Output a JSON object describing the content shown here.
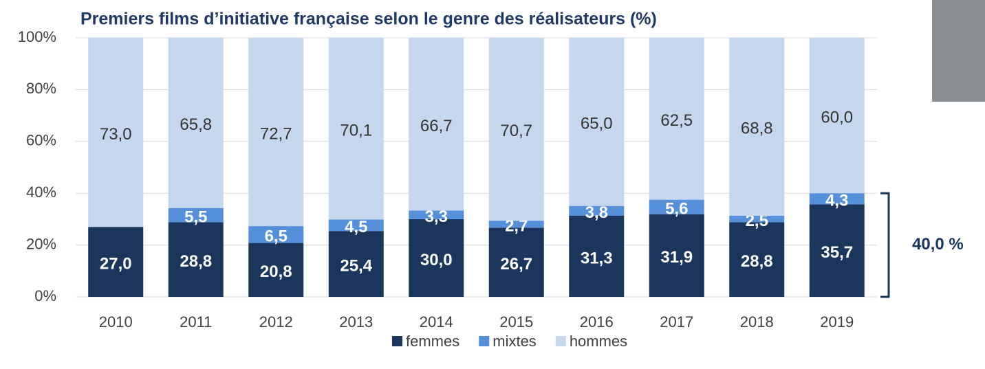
{
  "chart_data": {
    "type": "stacked-bar",
    "title": "Premiers films d’initiative française selon le genre des réalisateurs (%)",
    "categories": [
      "2010",
      "2011",
      "2012",
      "2013",
      "2014",
      "2015",
      "2016",
      "2017",
      "2018",
      "2019"
    ],
    "series": [
      {
        "name": "femmes",
        "color": "#1b365d",
        "values": [
          27.0,
          28.8,
          20.8,
          25.4,
          30.0,
          26.7,
          31.3,
          31.9,
          28.8,
          35.7
        ],
        "value_labels": [
          "27,0",
          "28,8",
          "20,8",
          "25,4",
          "30,0",
          "26,7",
          "31,3",
          "31,9",
          "28,8",
          "35,7"
        ]
      },
      {
        "name": "mixtes",
        "color": "#5590db",
        "values": [
          null,
          5.5,
          6.5,
          4.5,
          3.3,
          2.7,
          3.8,
          5.6,
          2.5,
          4.3
        ],
        "value_labels": [
          null,
          "5,5",
          "6,5",
          "4,5",
          "3,3",
          "2,7",
          "3,8",
          "5,6",
          "2,5",
          "4,3"
        ]
      },
      {
        "name": "hommes",
        "color": "#c5d7ef",
        "values": [
          73.0,
          65.8,
          72.7,
          70.1,
          66.7,
          70.7,
          65.0,
          62.5,
          68.8,
          60.0
        ],
        "value_labels": [
          "73,0",
          "65,8",
          "72,7",
          "70,1",
          "66,7",
          "70,7",
          "65,0",
          "62,5",
          "68,8",
          "60,0"
        ]
      }
    ],
    "ylim": [
      0,
      100
    ],
    "yticks": [
      {
        "value": 0,
        "label": "0%"
      },
      {
        "value": 20,
        "label": "20%"
      },
      {
        "value": 40,
        "label": "40%"
      },
      {
        "value": 60,
        "label": "60%"
      },
      {
        "value": 80,
        "label": "80%"
      },
      {
        "value": 100,
        "label": "100%"
      }
    ],
    "grid": true,
    "legend": "bottom",
    "annotation": "40,0 %"
  }
}
